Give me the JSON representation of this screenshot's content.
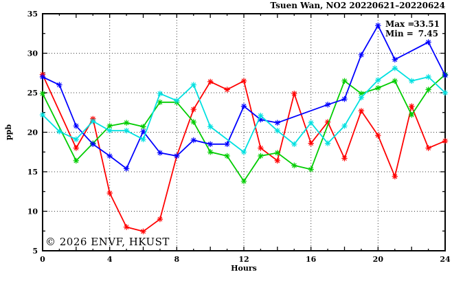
{
  "header": {
    "title": "Tsuen Wan, NO2 20220621–20220624"
  },
  "annotations": {
    "max_label": "Max =",
    "max_value": "33.51",
    "min_label": "Min =",
    "min_value": "7.45"
  },
  "watermark": "© 2026 ENVF, HKUST",
  "chart_data": {
    "type": "line",
    "title": "Tsuen Wan, NO2 20220621–20220624",
    "xlabel": "Hours",
    "ylabel": "ppb",
    "xlim": [
      0,
      24
    ],
    "ylim": [
      5,
      35
    ],
    "x_tick_labels": [
      0,
      4,
      8,
      12,
      16,
      20,
      24
    ],
    "y_tick_labels": [
      5,
      10,
      15,
      20,
      25,
      30,
      35
    ],
    "x_major_tick_step": 2,
    "x_minor_tick_step": 1,
    "y_major_tick_step": 5,
    "y_minor_tick_step": 2.5,
    "grid": {
      "style": "dotted",
      "x_lines": [
        4,
        8,
        12,
        16,
        20
      ],
      "y_lines": [
        10,
        15,
        20,
        25,
        30
      ]
    },
    "legend": "none",
    "stat_max": 33.51,
    "stat_min": 7.45,
    "marker": "asterisk",
    "series": [
      {
        "name": "red",
        "color": "#ff0000",
        "x": [
          0,
          2,
          3,
          4,
          5,
          6,
          7,
          8,
          9,
          10,
          11,
          12,
          13,
          14,
          15,
          16,
          17,
          18,
          19,
          20,
          21,
          22,
          23,
          24
        ],
        "y": [
          27.3,
          18.0,
          21.7,
          12.3,
          8.0,
          7.45,
          9.0,
          17.0,
          22.9,
          26.4,
          25.4,
          26.5,
          18.0,
          16.4,
          24.9,
          18.6,
          21.3,
          16.7,
          22.7,
          19.6,
          14.4,
          23.3,
          18.0,
          18.9
        ]
      },
      {
        "name": "green",
        "color": "#00cc00",
        "x": [
          0,
          2,
          3,
          4,
          5,
          6,
          7,
          8,
          9,
          10,
          11,
          12,
          13,
          14,
          15,
          16,
          18,
          19,
          20,
          21,
          22,
          23,
          24
        ],
        "y": [
          24.9,
          16.4,
          18.6,
          20.8,
          21.2,
          20.7,
          23.8,
          23.8,
          21.3,
          17.5,
          17.0,
          13.8,
          17.0,
          17.4,
          15.8,
          15.3,
          26.5,
          24.9,
          25.6,
          26.5,
          22.2,
          25.4,
          27.3
        ]
      },
      {
        "name": "blue",
        "color": "#0000ff",
        "x": [
          0,
          1,
          2,
          3,
          4,
          5,
          6,
          7,
          8,
          9,
          10,
          11,
          12,
          13,
          14,
          17,
          18,
          19,
          20,
          21,
          23,
          24
        ],
        "y": [
          27.0,
          26.0,
          20.8,
          18.5,
          17.0,
          15.4,
          20.1,
          17.4,
          17.0,
          19.0,
          18.5,
          18.5,
          23.3,
          21.6,
          21.2,
          23.5,
          24.2,
          29.8,
          33.51,
          29.2,
          31.4,
          27.2
        ]
      },
      {
        "name": "cyan",
        "color": "#00e0e0",
        "x": [
          0,
          1,
          2,
          3,
          4,
          5,
          6,
          7,
          8,
          9,
          10,
          12,
          13,
          14,
          15,
          16,
          17,
          18,
          19,
          20,
          21,
          22,
          23,
          24
        ],
        "y": [
          22.2,
          20.1,
          19.1,
          21.4,
          20.2,
          20.2,
          19.1,
          24.9,
          24.0,
          26.0,
          20.7,
          17.5,
          22.1,
          20.2,
          18.5,
          21.2,
          18.6,
          20.8,
          24.4,
          26.6,
          28.1,
          26.5,
          27.0,
          25.0
        ]
      }
    ]
  }
}
